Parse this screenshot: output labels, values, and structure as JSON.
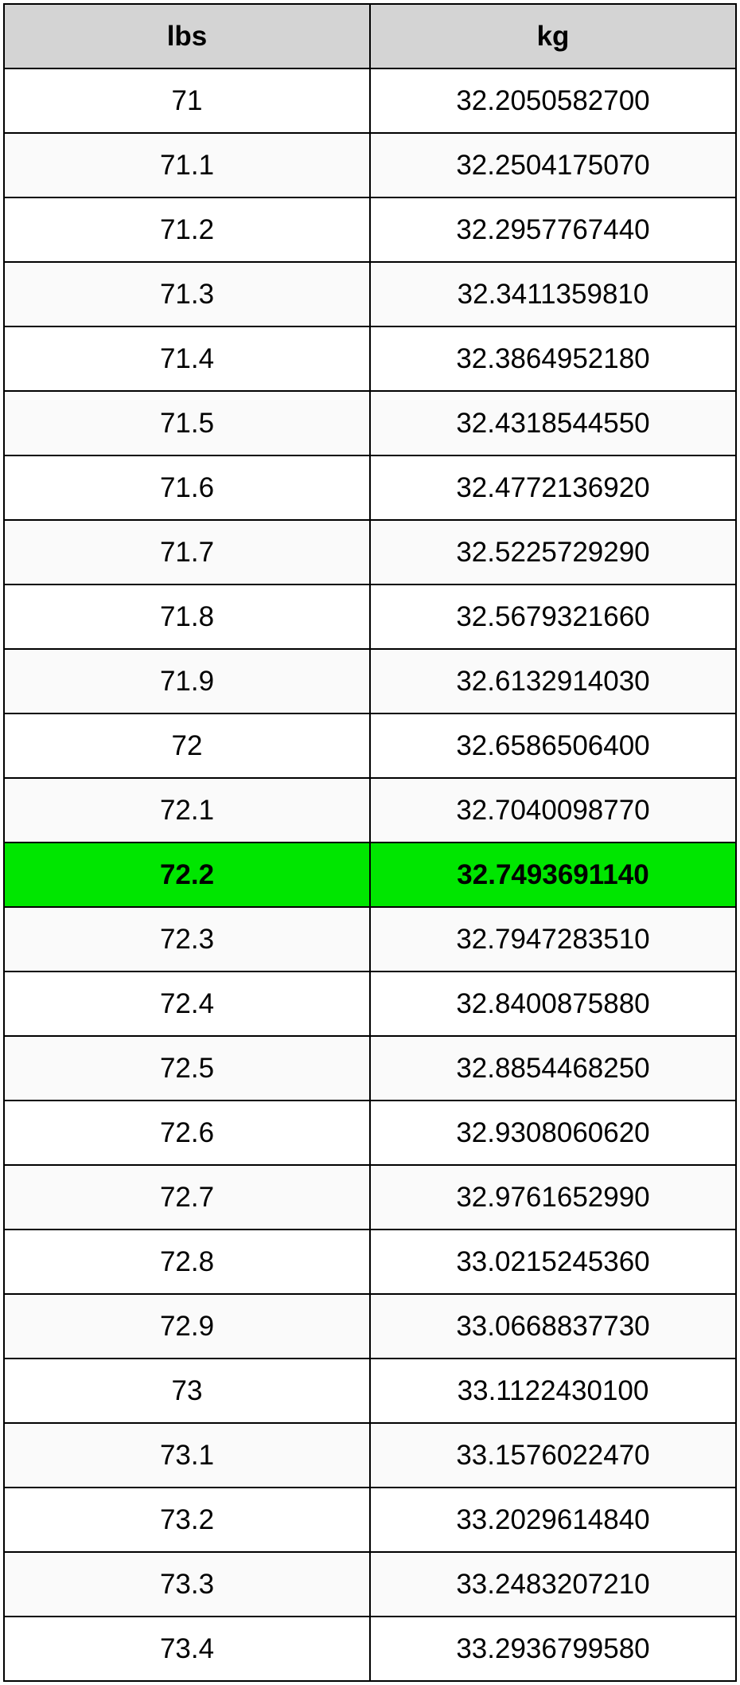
{
  "table": {
    "type": "table",
    "columns": [
      "lbs",
      "kg"
    ],
    "header_bg": "#d4d4d4",
    "border_color": "#000000",
    "row_alt_bg": "#fafafa",
    "row_bg": "#ffffff",
    "highlight_bg": "#00e600",
    "font_size_pt": 26,
    "rows": [
      {
        "lbs": "71",
        "kg": "32.2050582700",
        "highlight": false
      },
      {
        "lbs": "71.1",
        "kg": "32.2504175070",
        "highlight": false
      },
      {
        "lbs": "71.2",
        "kg": "32.2957767440",
        "highlight": false
      },
      {
        "lbs": "71.3",
        "kg": "32.3411359810",
        "highlight": false
      },
      {
        "lbs": "71.4",
        "kg": "32.3864952180",
        "highlight": false
      },
      {
        "lbs": "71.5",
        "kg": "32.4318544550",
        "highlight": false
      },
      {
        "lbs": "71.6",
        "kg": "32.4772136920",
        "highlight": false
      },
      {
        "lbs": "71.7",
        "kg": "32.5225729290",
        "highlight": false
      },
      {
        "lbs": "71.8",
        "kg": "32.5679321660",
        "highlight": false
      },
      {
        "lbs": "71.9",
        "kg": "32.6132914030",
        "highlight": false
      },
      {
        "lbs": "72",
        "kg": "32.6586506400",
        "highlight": false
      },
      {
        "lbs": "72.1",
        "kg": "32.7040098770",
        "highlight": false
      },
      {
        "lbs": "72.2",
        "kg": "32.7493691140",
        "highlight": true
      },
      {
        "lbs": "72.3",
        "kg": "32.7947283510",
        "highlight": false
      },
      {
        "lbs": "72.4",
        "kg": "32.8400875880",
        "highlight": false
      },
      {
        "lbs": "72.5",
        "kg": "32.8854468250",
        "highlight": false
      },
      {
        "lbs": "72.6",
        "kg": "32.9308060620",
        "highlight": false
      },
      {
        "lbs": "72.7",
        "kg": "32.9761652990",
        "highlight": false
      },
      {
        "lbs": "72.8",
        "kg": "33.0215245360",
        "highlight": false
      },
      {
        "lbs": "72.9",
        "kg": "33.0668837730",
        "highlight": false
      },
      {
        "lbs": "73",
        "kg": "33.1122430100",
        "highlight": false
      },
      {
        "lbs": "73.1",
        "kg": "33.1576022470",
        "highlight": false
      },
      {
        "lbs": "73.2",
        "kg": "33.2029614840",
        "highlight": false
      },
      {
        "lbs": "73.3",
        "kg": "33.2483207210",
        "highlight": false
      },
      {
        "lbs": "73.4",
        "kg": "33.2936799580",
        "highlight": false
      }
    ]
  }
}
